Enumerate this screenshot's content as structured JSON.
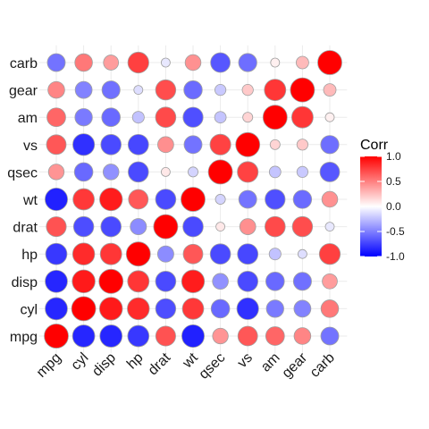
{
  "chart_data": {
    "type": "heatmap",
    "style": "circle",
    "variables": [
      "mpg",
      "cyl",
      "disp",
      "hp",
      "drat",
      "wt",
      "qsec",
      "vs",
      "am",
      "gear",
      "carb"
    ],
    "matrix": [
      [
        1.0,
        -0.85,
        -0.85,
        -0.78,
        0.68,
        -0.87,
        0.42,
        0.66,
        0.6,
        0.48,
        -0.55
      ],
      [
        -0.85,
        1.0,
        0.9,
        0.83,
        -0.7,
        0.78,
        -0.59,
        -0.81,
        -0.52,
        -0.49,
        0.53
      ],
      [
        -0.85,
        0.9,
        1.0,
        0.79,
        -0.71,
        0.89,
        -0.43,
        -0.71,
        -0.59,
        -0.56,
        0.39
      ],
      [
        -0.78,
        0.83,
        0.79,
        1.0,
        -0.45,
        0.66,
        -0.71,
        -0.72,
        -0.24,
        -0.13,
        0.75
      ],
      [
        0.68,
        -0.7,
        -0.71,
        -0.45,
        1.0,
        -0.71,
        0.09,
        0.44,
        0.71,
        0.7,
        -0.09
      ],
      [
        -0.87,
        0.78,
        0.89,
        0.66,
        -0.71,
        1.0,
        -0.17,
        -0.55,
        -0.69,
        -0.58,
        0.43
      ],
      [
        0.42,
        -0.59,
        -0.43,
        -0.71,
        0.09,
        -0.17,
        1.0,
        0.74,
        -0.23,
        -0.21,
        -0.66
      ],
      [
        0.66,
        -0.81,
        -0.71,
        -0.72,
        0.44,
        -0.55,
        0.74,
        1.0,
        0.17,
        0.21,
        -0.57
      ],
      [
        0.6,
        -0.52,
        -0.59,
        -0.24,
        0.71,
        -0.69,
        -0.23,
        0.17,
        1.0,
        0.79,
        0.06
      ],
      [
        0.48,
        -0.49,
        -0.56,
        -0.13,
        0.7,
        -0.58,
        -0.21,
        0.21,
        0.79,
        1.0,
        0.27
      ],
      [
        -0.55,
        0.53,
        0.39,
        0.75,
        -0.09,
        0.43,
        -0.66,
        -0.57,
        0.06,
        0.27,
        1.0
      ]
    ],
    "legend": {
      "title": "Corr",
      "ticks": [
        1.0,
        0.5,
        0.0,
        -0.5,
        -1.0
      ],
      "tick_labels": [
        "1.0",
        "0.5",
        "0.0",
        "-0.5",
        "-1.0"
      ],
      "placement": "right"
    },
    "scale": {
      "low": -1,
      "mid": 0,
      "high": 1
    },
    "colors": {
      "low": "#0000ff",
      "mid": "#ffffff",
      "high": "#ff0000",
      "circle_outline": "#a0a0a0",
      "grid": "#ebebeb"
    },
    "grid": true
  }
}
